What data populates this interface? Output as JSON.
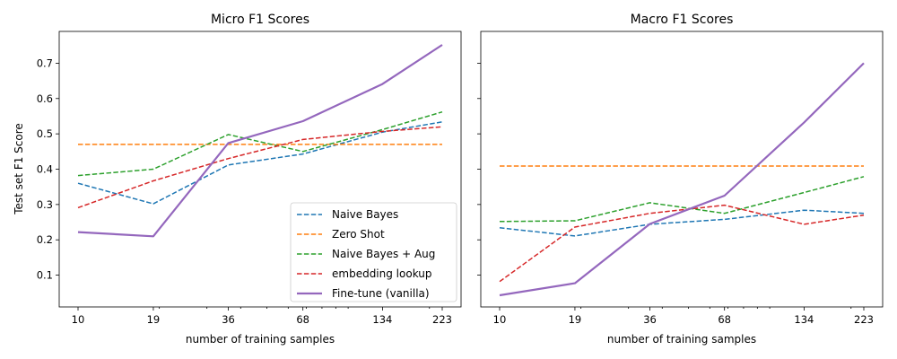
{
  "chart_data": [
    {
      "type": "line",
      "title": "Micro F1 Scores",
      "xlabel": "number of training samples",
      "ylabel": "Test set F1 Score",
      "x": [
        10,
        19,
        36,
        68,
        134,
        223
      ],
      "x_scale": "log",
      "x_ticks": [
        "10",
        "19",
        "36",
        "68",
        "134",
        "223"
      ],
      "y_ticks": [
        "0.1",
        "0.2",
        "0.3",
        "0.4",
        "0.5",
        "0.6",
        "0.7"
      ],
      "ylim": [
        0.01,
        0.79
      ],
      "legend": "lower-right",
      "series": [
        {
          "name": "Naive Bayes",
          "color": "#1f77b4",
          "style": "dashed",
          "values": [
            0.36,
            0.302,
            0.412,
            0.443,
            0.505,
            0.534
          ]
        },
        {
          "name": "Zero Shot",
          "color": "#ff7f0e",
          "style": "dashed",
          "values": [
            0.47,
            0.47,
            0.47,
            0.47,
            0.47,
            0.47
          ]
        },
        {
          "name": "Naive Bayes + Aug",
          "color": "#2ca02c",
          "style": "dashed",
          "values": [
            0.382,
            0.4,
            0.498,
            0.45,
            0.512,
            0.562
          ]
        },
        {
          "name": "embedding lookup",
          "color": "#d62728",
          "style": "dashed",
          "values": [
            0.291,
            0.367,
            0.43,
            0.484,
            0.507,
            0.52
          ]
        },
        {
          "name": "Fine-tune (vanilla)",
          "color": "#9467bd",
          "style": "solid",
          "values": [
            0.222,
            0.21,
            0.474,
            0.536,
            0.641,
            0.752
          ]
        }
      ]
    },
    {
      "type": "line",
      "title": "Macro F1 Scores",
      "xlabel": "number of training samples",
      "ylabel": "",
      "x": [
        10,
        19,
        36,
        68,
        134,
        223
      ],
      "x_scale": "log",
      "x_ticks": [
        "10",
        "19",
        "36",
        "68",
        "134",
        "223"
      ],
      "ylim": [
        0.01,
        0.79
      ],
      "shared_y": true,
      "series": [
        {
          "name": "Naive Bayes",
          "color": "#1f77b4",
          "style": "dashed",
          "values": [
            0.234,
            0.211,
            0.244,
            0.258,
            0.284,
            0.275
          ]
        },
        {
          "name": "Zero Shot",
          "color": "#ff7f0e",
          "style": "dashed",
          "values": [
            0.409,
            0.409,
            0.409,
            0.409,
            0.409,
            0.409
          ]
        },
        {
          "name": "Naive Bayes + Aug",
          "color": "#2ca02c",
          "style": "dashed",
          "values": [
            0.252,
            0.254,
            0.305,
            0.275,
            0.334,
            0.379
          ]
        },
        {
          "name": "embedding lookup",
          "color": "#d62728",
          "style": "dashed",
          "values": [
            0.082,
            0.236,
            0.275,
            0.298,
            0.244,
            0.27
          ]
        },
        {
          "name": "Fine-tune (vanilla)",
          "color": "#9467bd",
          "style": "solid",
          "values": [
            0.043,
            0.077,
            0.245,
            0.325,
            0.532,
            0.7
          ]
        }
      ]
    }
  ]
}
